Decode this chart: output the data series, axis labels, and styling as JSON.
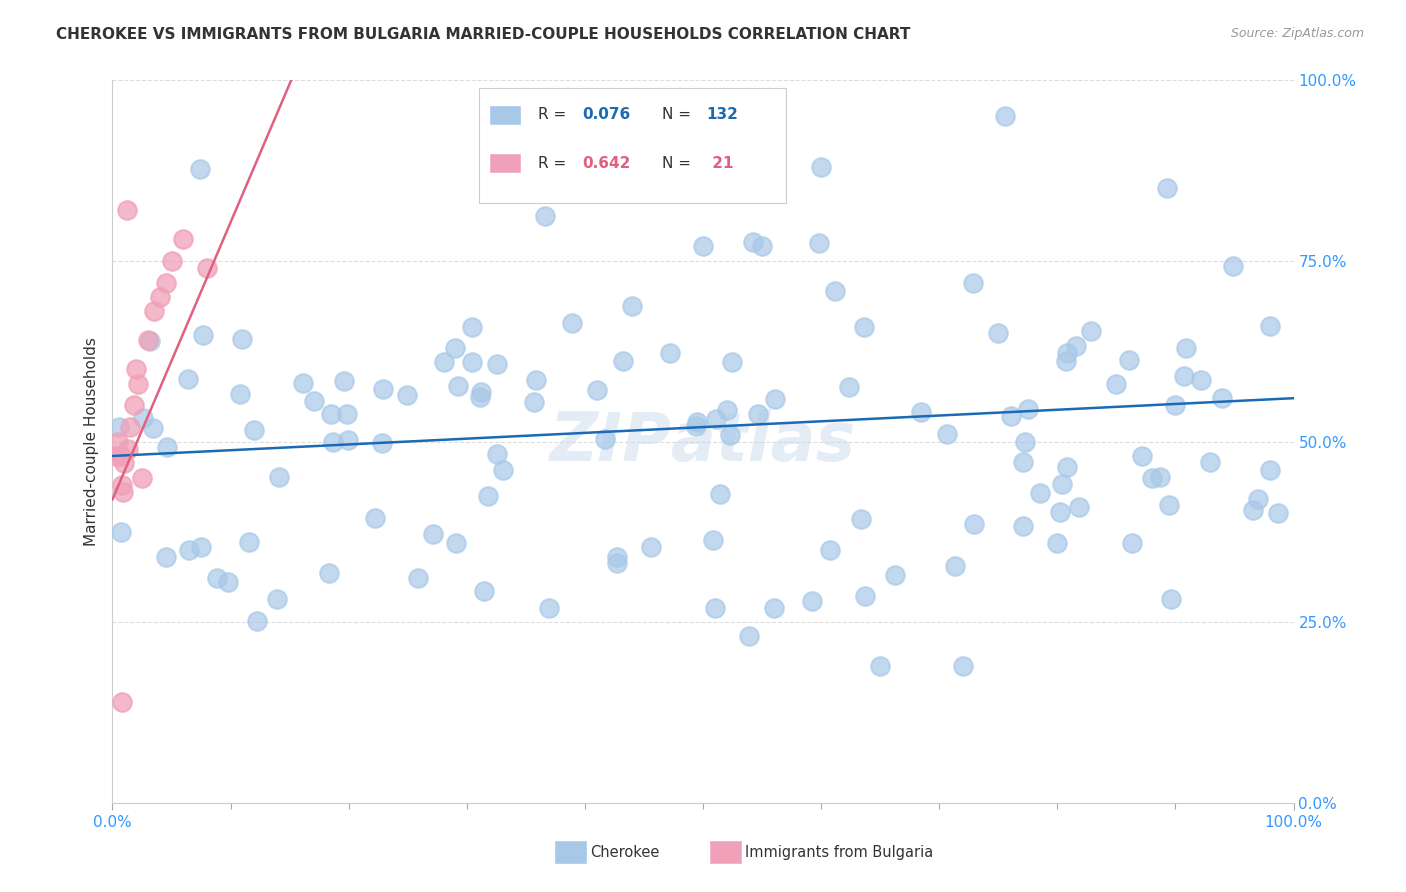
{
  "title": "CHEROKEE VS IMMIGRANTS FROM BULGARIA MARRIED-COUPLE HOUSEHOLDS CORRELATION CHART",
  "source": "Source: ZipAtlas.com",
  "ylabel": "Married-couple Households",
  "legend_label1": "Cherokee",
  "legend_label2": "Immigrants from Bulgaria",
  "watermark": "ZIPAtlas",
  "R1": 0.076,
  "N1": 132,
  "R2": 0.642,
  "N2": 21,
  "cherokee_color": "#a8c8e8",
  "bulgaria_color": "#f0a0b8",
  "line1_color": "#1a6ab5",
  "line2_color": "#e06080",
  "ytick_color": "#3399ff",
  "xtick_color": "#3399ff",
  "grid_color": "#dddddd",
  "title_color": "#333333",
  "source_color": "#999999",
  "ylabel_color": "#333333",
  "legend_text_color": "#333333",
  "figsize": [
    14.06,
    8.92
  ],
  "dpi": 100,
  "xlim": [
    0,
    100
  ],
  "ylim": [
    0,
    100
  ]
}
